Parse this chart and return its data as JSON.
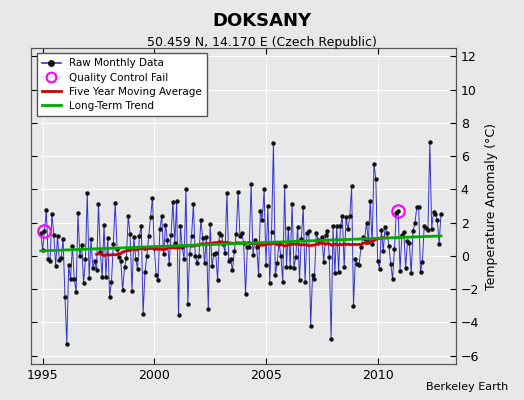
{
  "title": "DOKSANY",
  "subtitle": "50.459 N, 14.170 E (Czech Republic)",
  "ylabel": "Temperature Anomaly (°C)",
  "credit": "Berkeley Earth",
  "xlim": [
    1994.5,
    2013.5
  ],
  "ylim": [
    -6.5,
    12.5
  ],
  "yticks": [
    -6,
    -4,
    -2,
    0,
    2,
    4,
    6,
    8,
    10,
    12
  ],
  "xticks": [
    1995,
    2000,
    2005,
    2010
  ],
  "background_color": "#e8e8e8",
  "raw_color": "#3333cc",
  "raw_marker_color": "#111111",
  "moving_avg_color": "#cc0000",
  "trend_color": "#00aa00",
  "qc_fail_color": "#ff00ff",
  "grid_color": "#ffffff",
  "seed": 42,
  "n_months": 216,
  "start_year": 1994.9167,
  "qc_fail_indices": [
    2,
    192
  ],
  "spikes": {
    "14": -5.3,
    "25": 3.8,
    "40": 3.2,
    "55": -3.5,
    "60": 3.5,
    "78": 4.0,
    "90": -3.2,
    "100": 3.8,
    "120": 4.0,
    "125": 6.8,
    "131": 4.2,
    "145": -4.2,
    "156": -5.0,
    "168": -3.0,
    "180": 4.6,
    "192": 2.7
  }
}
